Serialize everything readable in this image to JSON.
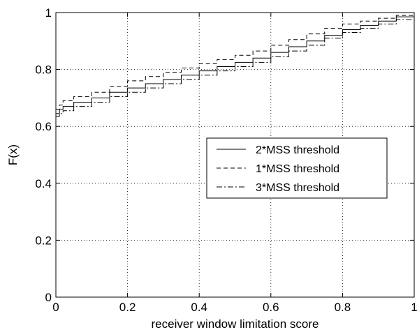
{
  "chart_data": {
    "type": "line",
    "title": "",
    "xlabel": "receiver window limitation score",
    "ylabel": "F(x)",
    "xlim": [
      0,
      1
    ],
    "ylim": [
      0,
      1
    ],
    "xticks": [
      0,
      0.2,
      0.4,
      0.6,
      0.8,
      1
    ],
    "yticks": [
      0,
      0.2,
      0.4,
      0.6,
      0.8,
      1
    ],
    "xtick_labels": [
      "0",
      "0.2",
      "0.4",
      "0.6",
      "0.8",
      "1"
    ],
    "ytick_labels": [
      "0",
      "0.2",
      "0.4",
      "0.6",
      "0.8",
      "1"
    ],
    "grid": true,
    "legend_position": "center-right",
    "series": [
      {
        "name": "2*MSS threshold",
        "line_style": "solid",
        "x": [
          0,
          0.01,
          0.02,
          0.05,
          0.1,
          0.15,
          0.2,
          0.25,
          0.3,
          0.35,
          0.4,
          0.45,
          0.5,
          0.55,
          0.6,
          0.65,
          0.7,
          0.75,
          0.8,
          0.85,
          0.9,
          0.95,
          1
        ],
        "y": [
          0.645,
          0.66,
          0.67,
          0.685,
          0.7,
          0.72,
          0.735,
          0.75,
          0.765,
          0.78,
          0.795,
          0.81,
          0.825,
          0.84,
          0.86,
          0.88,
          0.9,
          0.92,
          0.94,
          0.955,
          0.97,
          0.985,
          1
        ]
      },
      {
        "name": "1*MSS threshold",
        "line_style": "dashed",
        "x": [
          0,
          0.01,
          0.02,
          0.05,
          0.1,
          0.15,
          0.2,
          0.25,
          0.3,
          0.35,
          0.4,
          0.45,
          0.5,
          0.55,
          0.6,
          0.65,
          0.7,
          0.75,
          0.8,
          0.85,
          0.9,
          0.95,
          1
        ],
        "y": [
          0.66,
          0.675,
          0.69,
          0.705,
          0.72,
          0.74,
          0.76,
          0.775,
          0.79,
          0.805,
          0.82,
          0.835,
          0.85,
          0.865,
          0.885,
          0.905,
          0.925,
          0.945,
          0.96,
          0.97,
          0.98,
          0.99,
          1
        ]
      },
      {
        "name": "3*MSS threshold",
        "line_style": "dashdot",
        "x": [
          0,
          0.01,
          0.02,
          0.05,
          0.1,
          0.15,
          0.2,
          0.25,
          0.3,
          0.35,
          0.4,
          0.45,
          0.5,
          0.55,
          0.6,
          0.65,
          0.7,
          0.75,
          0.8,
          0.85,
          0.9,
          0.95,
          1
        ],
        "y": [
          0.635,
          0.645,
          0.655,
          0.67,
          0.685,
          0.705,
          0.72,
          0.735,
          0.75,
          0.765,
          0.78,
          0.795,
          0.81,
          0.825,
          0.845,
          0.865,
          0.885,
          0.91,
          0.93,
          0.945,
          0.96,
          0.975,
          0.995
        ]
      }
    ]
  }
}
